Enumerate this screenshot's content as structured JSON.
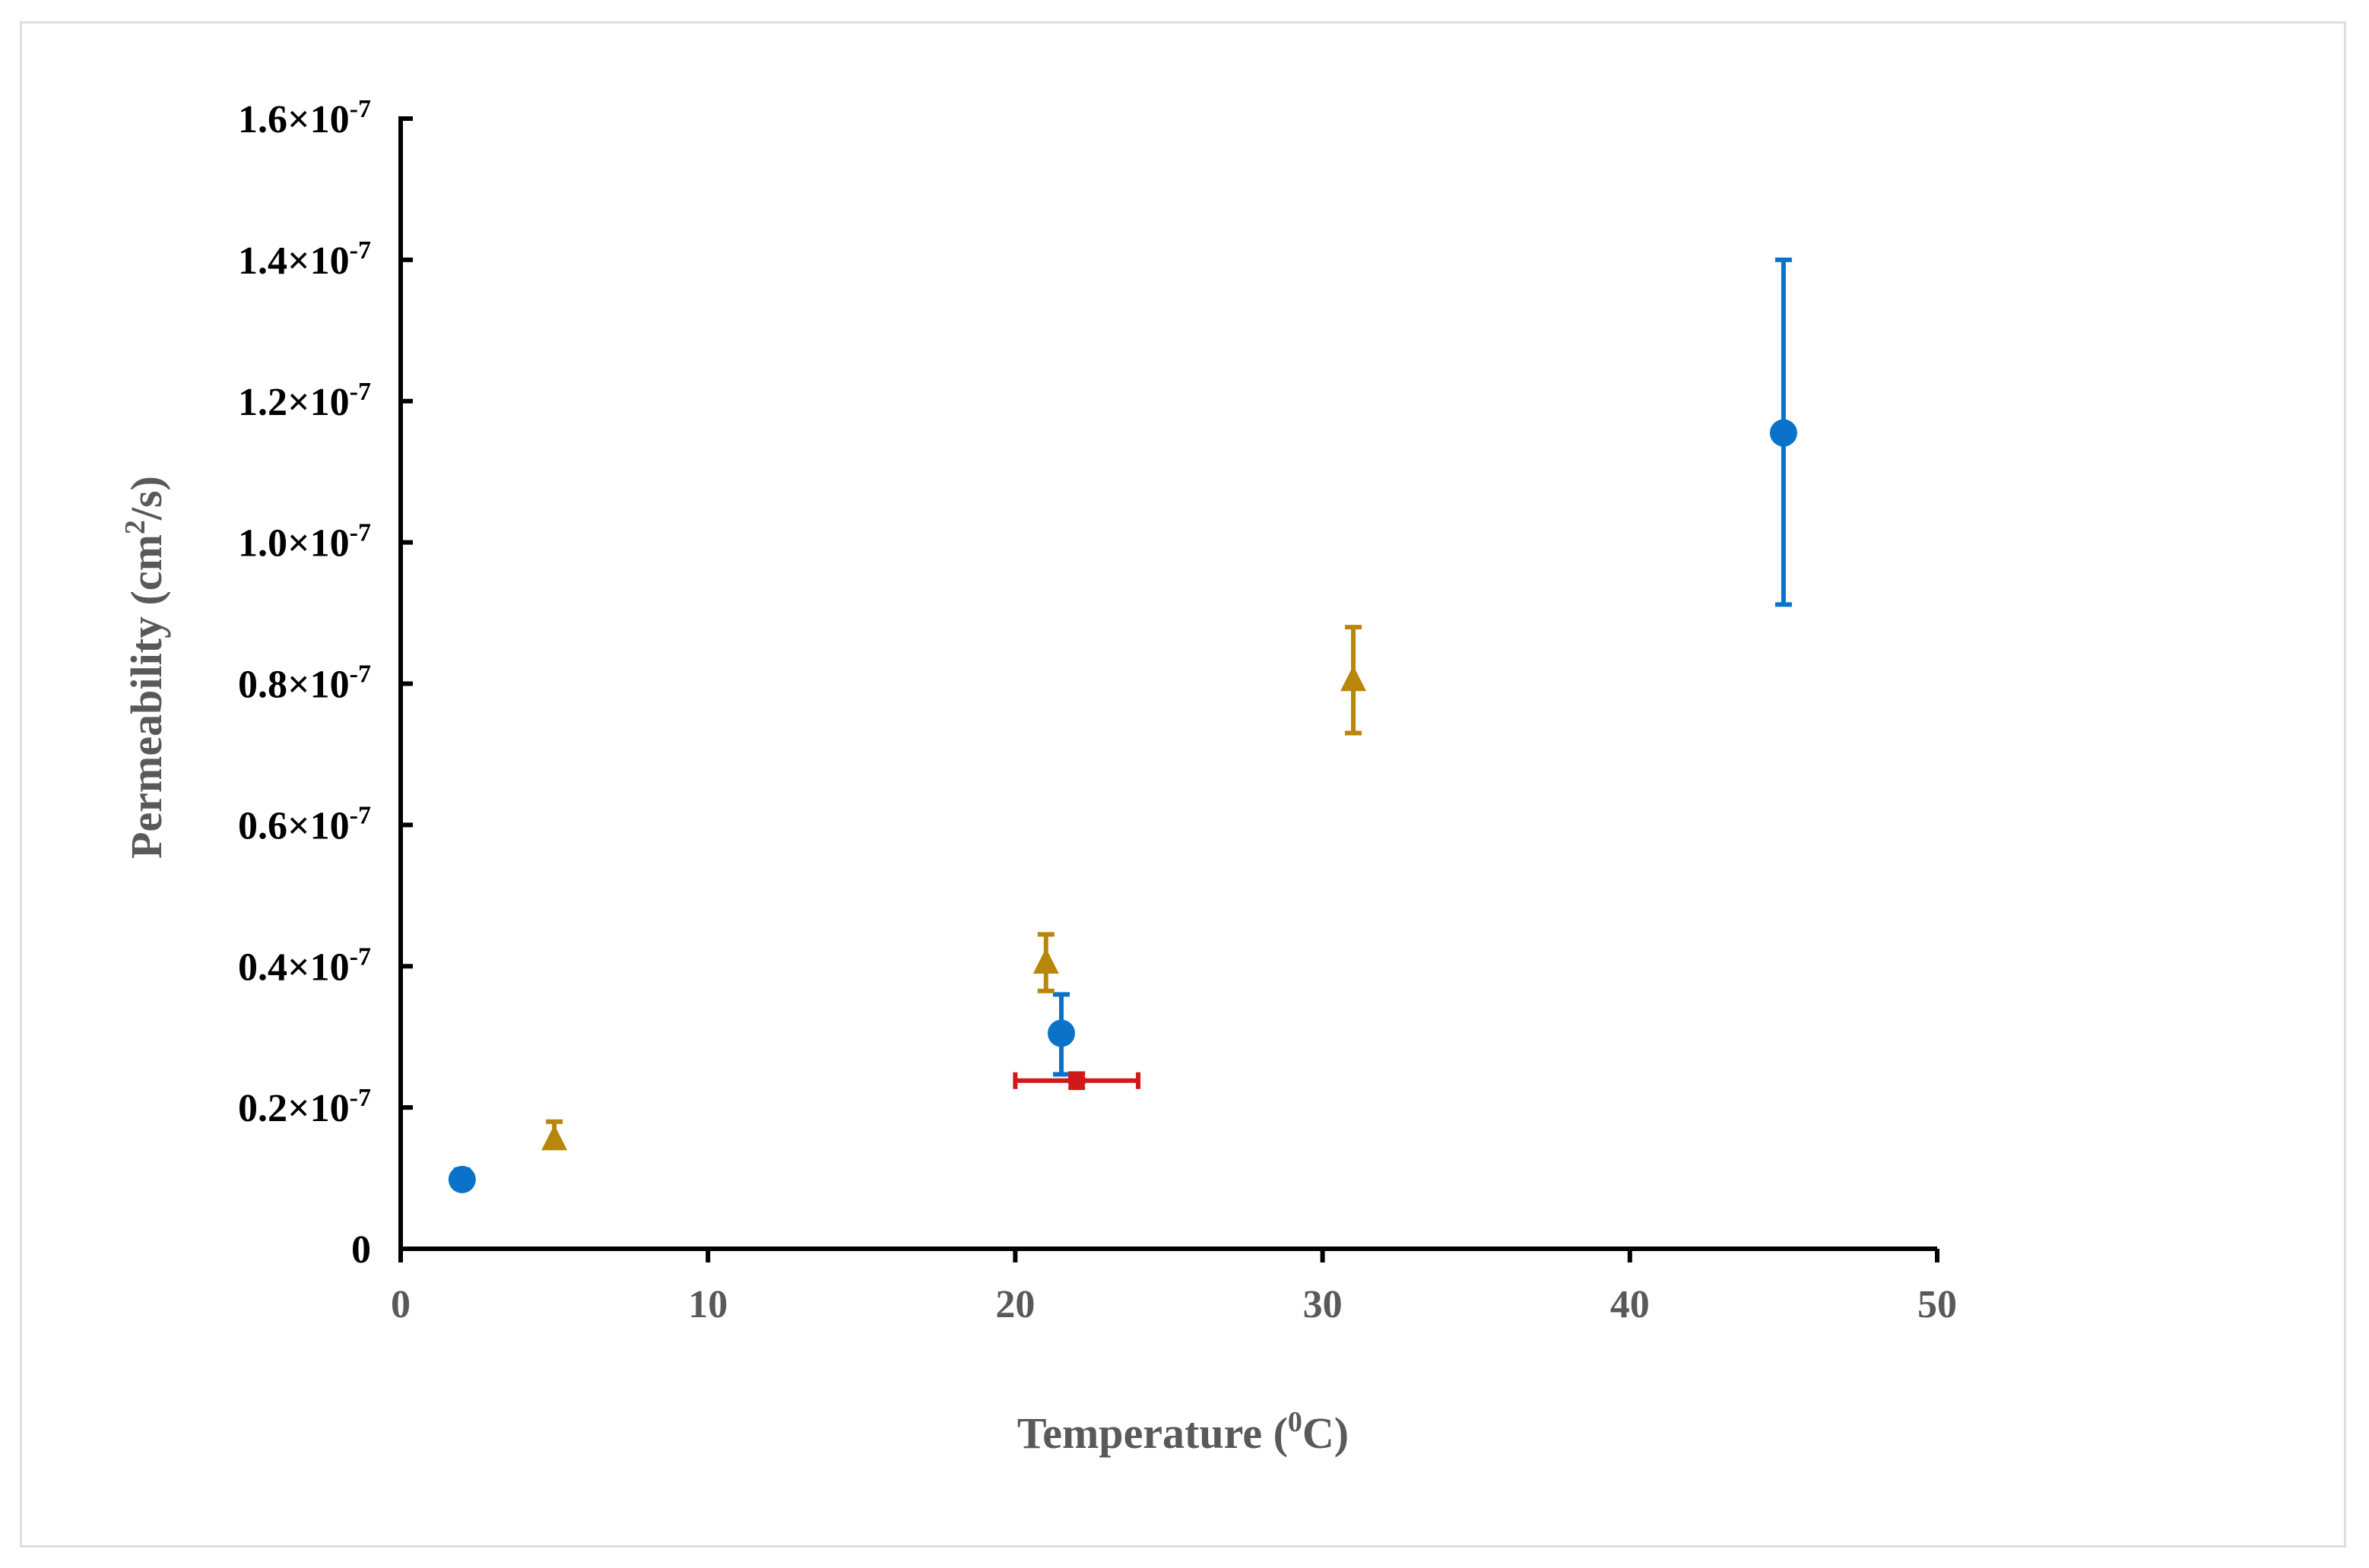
{
  "chart_data": {
    "type": "scatter",
    "xlabel": {
      "text": "Temperature (",
      "sup": "0",
      "tail": "C)"
    },
    "ylabel": {
      "text": "Permeability (cm",
      "sup": "2",
      "tail": "/s)"
    },
    "xlim": [
      0,
      50
    ],
    "ylim": [
      0,
      1.6e-07
    ],
    "xticks": [
      0,
      10,
      20,
      30,
      40,
      50
    ],
    "yticks": [
      {
        "value": 0,
        "base": "0",
        "exp": ""
      },
      {
        "value": 2e-08,
        "base": "0.2×10",
        "exp": "-7"
      },
      {
        "value": 4e-08,
        "base": "0.4×10",
        "exp": "-7"
      },
      {
        "value": 6e-08,
        "base": "0.6×10",
        "exp": "-7"
      },
      {
        "value": 8e-08,
        "base": "0.8×10",
        "exp": "-7"
      },
      {
        "value": 1e-07,
        "base": "1.0×10",
        "exp": "-7"
      },
      {
        "value": 1.2e-07,
        "base": "1.2×10",
        "exp": "-7"
      },
      {
        "value": 1.4e-07,
        "base": "1.4×10",
        "exp": "-7"
      },
      {
        "value": 1.6e-07,
        "base": "1.6×10",
        "exp": "-7"
      }
    ],
    "grid": false,
    "series": [
      {
        "marker": "circle",
        "color": "#0a72c8",
        "points": [
          {
            "x": 2,
            "y": 9.8e-09,
            "y_err_low": 8.8e-09,
            "y_err_high": 1.12e-08
          },
          {
            "x": 21.5,
            "y": 3.05e-08,
            "y_err_low": 2.47e-08,
            "y_err_high": 3.6e-08
          },
          {
            "x": 45,
            "y": 1.155e-07,
            "y_err_low": 9.12e-08,
            "y_err_high": 1.4e-07
          }
        ]
      },
      {
        "marker": "triangle",
        "color": "#b8860b",
        "points": [
          {
            "x": 5,
            "y": 1.55e-08,
            "y_err_low": 1.45e-08,
            "y_err_high": 1.8e-08
          },
          {
            "x": 21,
            "y": 4.05e-08,
            "y_err_low": 3.65e-08,
            "y_err_high": 4.45e-08
          },
          {
            "x": 31,
            "y": 8.05e-08,
            "y_err_low": 7.3e-08,
            "y_err_high": 8.8e-08
          }
        ]
      },
      {
        "marker": "small-circle",
        "color": "#d01919",
        "points": [
          {
            "x": 22,
            "y": 2.38e-08,
            "y_err_low": 2.28e-08,
            "y_err_high": 2.48e-08,
            "x_err_low": 20,
            "x_err_high": 24
          }
        ]
      }
    ]
  }
}
